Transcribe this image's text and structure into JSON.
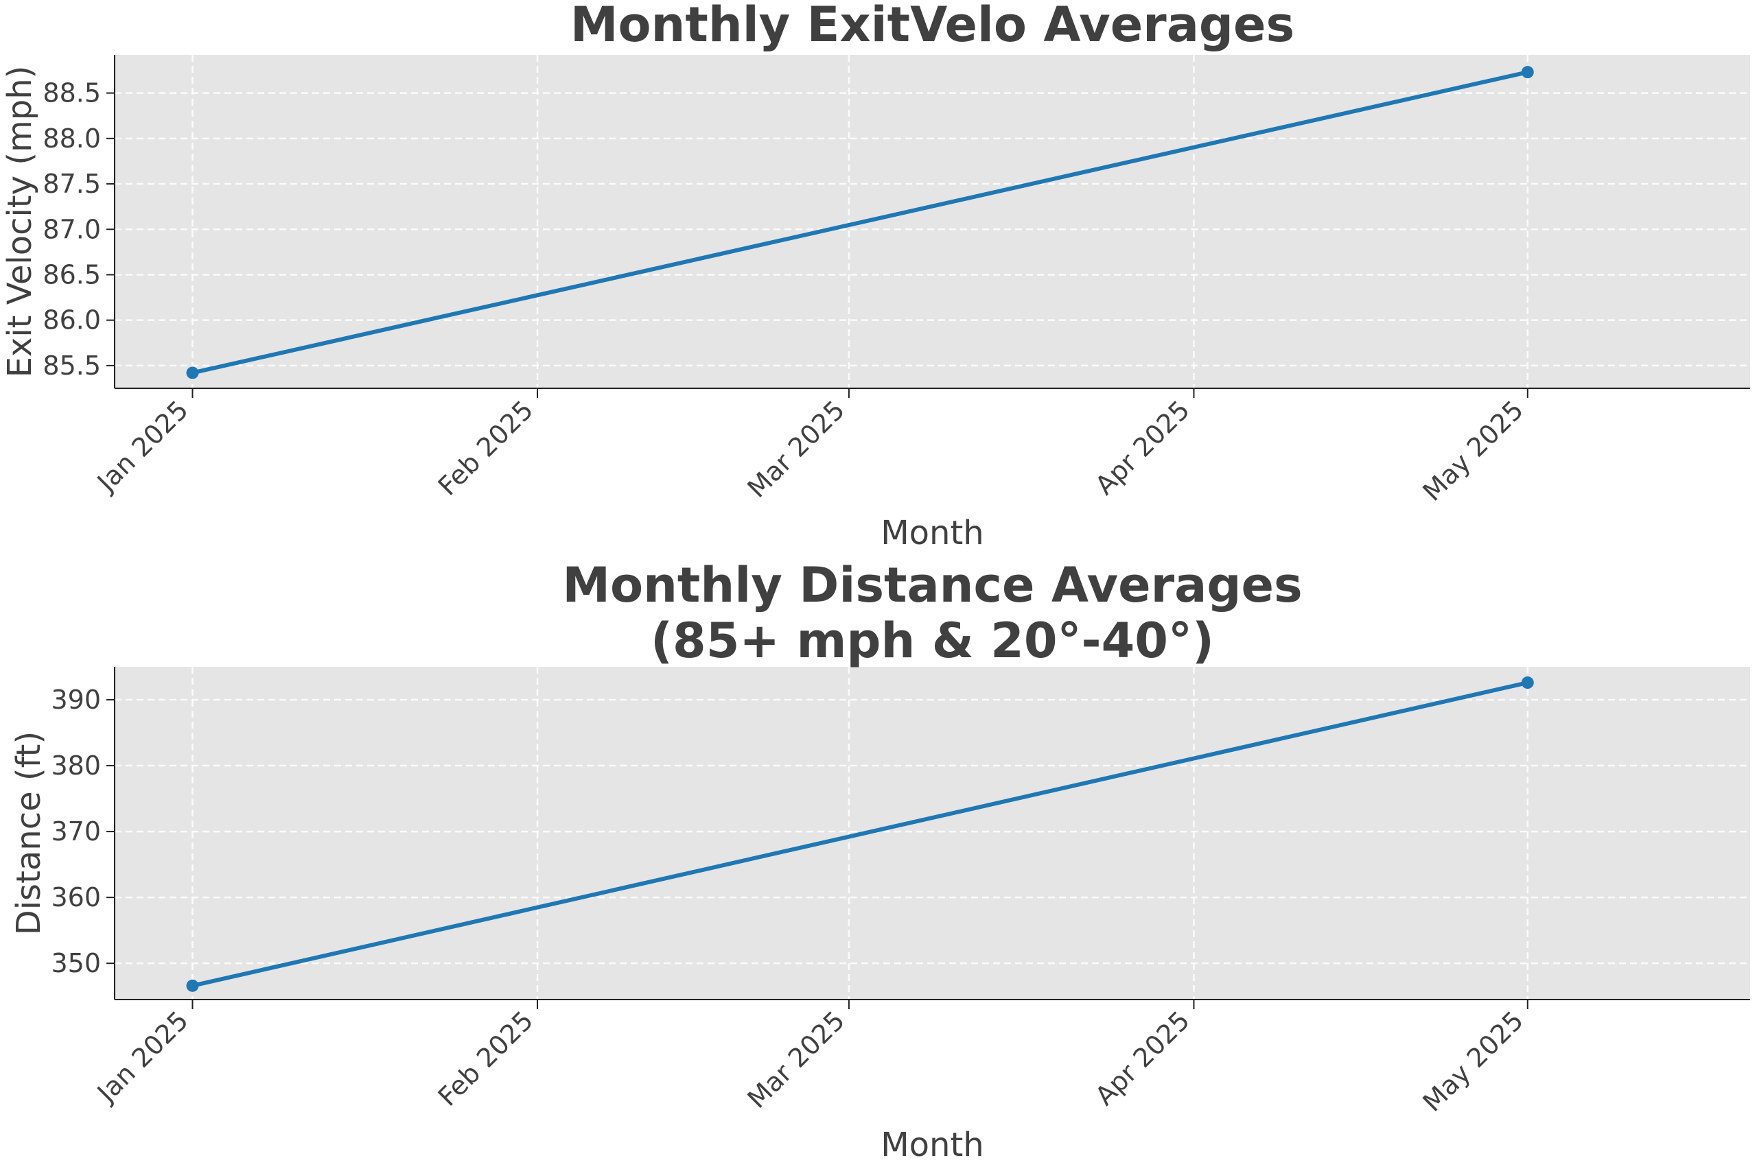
{
  "chart_data": [
    {
      "type": "line",
      "title": "Monthly ExitVelo Averages",
      "title_lines": [
        "Monthly ExitVelo Averages"
      ],
      "xlabel": "Month",
      "ylabel": "Exit Velocity (mph)",
      "x_ticks": [
        "Jan 2025",
        "Feb 2025",
        "Mar 2025",
        "Apr 2025",
        "May 2025"
      ],
      "y_ticks": [
        "85.5",
        "86.0",
        "86.5",
        "87.0",
        "87.5",
        "88.0",
        "88.5"
      ],
      "ylim": [
        85.25,
        88.92
      ],
      "xlim": [
        "2024-12-25",
        "2025-05-21"
      ],
      "grid": true,
      "series": [
        {
          "x": [
            "2025-01-01",
            "2025-05-01"
          ],
          "values": [
            85.42,
            88.73
          ],
          "color": "#1f77b4",
          "marker": "circle"
        }
      ]
    },
    {
      "type": "line",
      "title": "Monthly Distance Averages (85+ mph & 20°-40°)",
      "title_lines": [
        "Monthly Distance Averages",
        "(85+ mph & 20°-40°)"
      ],
      "xlabel": "Month",
      "ylabel": "Distance (ft)",
      "x_ticks": [
        "Jan 2025",
        "Feb 2025",
        "Mar 2025",
        "Apr 2025",
        "May 2025"
      ],
      "y_ticks": [
        "350",
        "360",
        "370",
        "380",
        "390"
      ],
      "ylim": [
        344.5,
        395
      ],
      "xlim": [
        "2024-12-25",
        "2025-05-21"
      ],
      "grid": true,
      "series": [
        {
          "x": [
            "2025-01-01",
            "2025-05-01"
          ],
          "values": [
            346.6,
            392.6
          ],
          "color": "#1f77b4",
          "marker": "circle"
        }
      ]
    }
  ],
  "colors": {
    "plot_background": "#e5e5e5",
    "grid": "#ffffff",
    "text": "#404040",
    "line": "#1f77b4"
  }
}
